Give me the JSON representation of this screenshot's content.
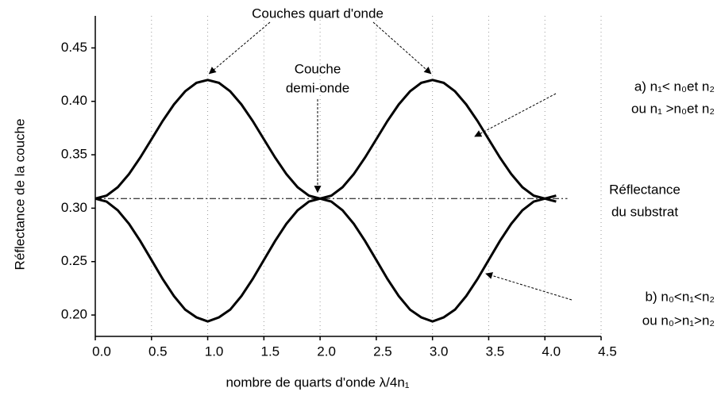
{
  "chart_data": {
    "type": "line",
    "xlabel": "nombre de quarts d'onde λ/4n₁",
    "ylabel": "Réflectance de la couche",
    "x": [
      0,
      0.1,
      0.2,
      0.3,
      0.4,
      0.5,
      0.6,
      0.7,
      0.8,
      0.9,
      1.0,
      1.1,
      1.2,
      1.3,
      1.4,
      1.5,
      1.6,
      1.7,
      1.8,
      1.9,
      2.0,
      2.1,
      2.2,
      2.3,
      2.4,
      2.5,
      2.6,
      2.7,
      2.8,
      2.9,
      3.0,
      3.1,
      3.2,
      3.3,
      3.4,
      3.5,
      3.6,
      3.7,
      3.8,
      3.9,
      4.0,
      4.1
    ],
    "series": [
      {
        "color": "#000000",
        "values": [
          0.309,
          0.3117,
          0.3196,
          0.3319,
          0.3474,
          0.3645,
          0.3817,
          0.3971,
          0.4094,
          0.4173,
          0.42,
          0.4173,
          0.4094,
          0.3971,
          0.3817,
          0.3645,
          0.3474,
          0.3319,
          0.3196,
          0.3117,
          0.309,
          0.3117,
          0.3196,
          0.3319,
          0.3474,
          0.3645,
          0.3817,
          0.3971,
          0.4094,
          0.4173,
          0.42,
          0.4173,
          0.4094,
          0.3971,
          0.3817,
          0.3645,
          0.3474,
          0.3319,
          0.3196,
          0.3117,
          0.309,
          0.3117
        ]
      },
      {
        "color": "#000000",
        "values": [
          0.309,
          0.3062,
          0.298,
          0.2853,
          0.2693,
          0.2515,
          0.2337,
          0.2177,
          0.205,
          0.1978,
          0.194,
          0.1978,
          0.205,
          0.2177,
          0.2337,
          0.2515,
          0.2693,
          0.2853,
          0.298,
          0.3062,
          0.309,
          0.3062,
          0.298,
          0.2853,
          0.2693,
          0.2515,
          0.2337,
          0.2177,
          0.205,
          0.1978,
          0.194,
          0.1978,
          0.205,
          0.2177,
          0.2337,
          0.2515,
          0.2693,
          0.2853,
          0.298,
          0.3062,
          0.309,
          0.3062
        ]
      }
    ],
    "reference_line": {
      "value": 0.309,
      "xlim": [
        0,
        4.2
      ]
    },
    "xlim": [
      0,
      4.5
    ],
    "ylim": [
      0.18,
      0.48
    ],
    "xticks": [
      {
        "value": 0,
        "label": "0.0"
      },
      0.5,
      {
        "value": 1,
        "label": "1.0"
      },
      1.5,
      {
        "value": 2,
        "label": "2.0"
      },
      2.5,
      {
        "value": 3,
        "label": "3.0"
      },
      3.5,
      {
        "value": 4,
        "label": "4.0"
      },
      4.5
    ],
    "yticks": [
      {
        "value": 0.2,
        "label": "0.20"
      },
      0.25,
      {
        "value": 0.3,
        "label": "0.30"
      },
      0.35,
      {
        "value": 0.4,
        "label": "0.40"
      },
      0.45
    ],
    "grid": "x",
    "annotations": {
      "quarter": [
        "Couches quart d'onde"
      ],
      "half": [
        "Couche",
        "demi-onde"
      ],
      "substrate": [
        "Réflectance",
        "du substrat"
      ],
      "a": [
        "a) n₁< n₀et n₂",
        "ou n₁ >n₀et n₂"
      ],
      "b": [
        "b) n₀<n₁<n₂",
        "ou n₀>n₁>n₂"
      ]
    }
  }
}
